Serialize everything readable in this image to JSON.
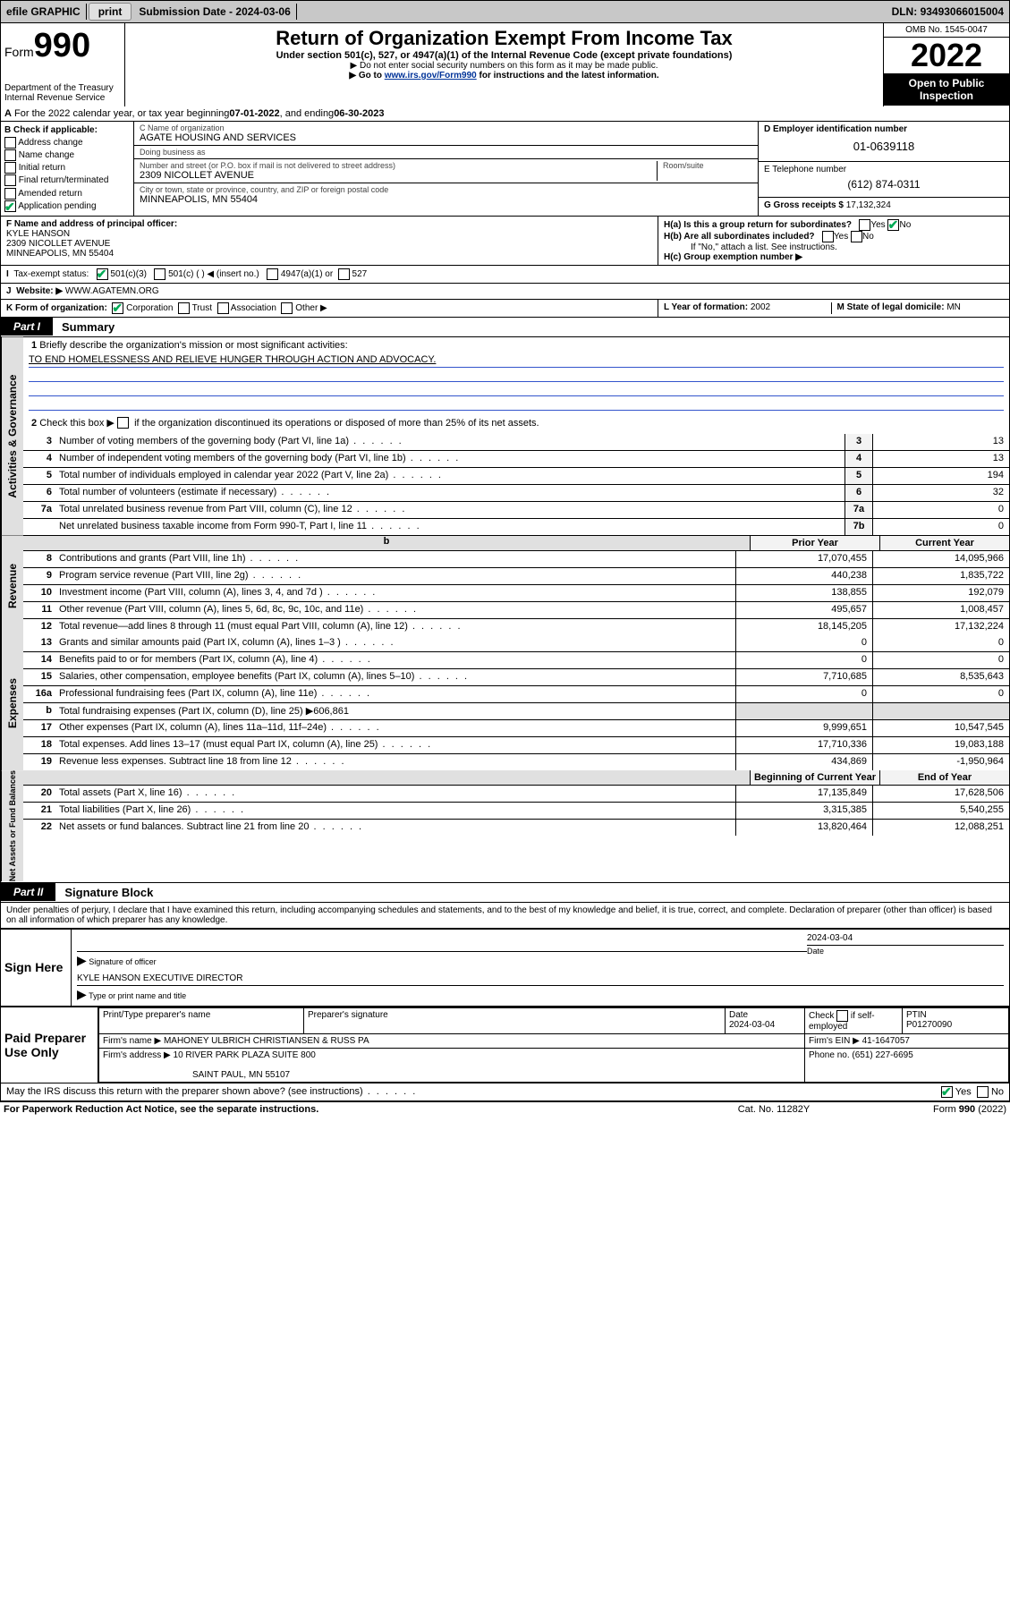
{
  "topbar": {
    "efile": "efile GRAPHIC",
    "print": "print",
    "submission_label": "Submission Date - ",
    "submission_date": "2024-03-06",
    "dln_label": "DLN: ",
    "dln": "93493066015004"
  },
  "header": {
    "form_prefix": "Form",
    "form_number": "990",
    "dept": "Department of the Treasury\nInternal Revenue Service",
    "title": "Return of Organization Exempt From Income Tax",
    "sub1": "Under section 501(c), 527, or 4947(a)(1) of the Internal Revenue Code (except private foundations)",
    "sub2": "▶ Do not enter social security numbers on this form as it may be made public.",
    "sub3_pre": "▶ Go to ",
    "sub3_link": "www.irs.gov/Form990",
    "sub3_post": " for instructions and the latest information.",
    "omb": "OMB No. 1545-0047",
    "year": "2022",
    "open": "Open to Public Inspection"
  },
  "line_a": {
    "text_pre": "For the 2022 calendar year, or tax year beginning ",
    "begin": "07-01-2022",
    "text_mid": " , and ending ",
    "end": "06-30-2023"
  },
  "section_b": {
    "heading": "B Check if applicable:",
    "items": [
      "Address change",
      "Name change",
      "Initial return",
      "Final return/terminated",
      "Amended return",
      "Application pending"
    ],
    "app_pending_checked": true
  },
  "section_c": {
    "name_label": "C Name of organization",
    "name": "AGATE HOUSING AND SERVICES",
    "dba_label": "Doing business as",
    "dba": "",
    "street_label": "Number and street (or P.O. box if mail is not delivered to street address)",
    "room_label": "Room/suite",
    "street": "2309 NICOLLET AVENUE",
    "city_label": "City or town, state or province, country, and ZIP or foreign postal code",
    "city": "MINNEAPOLIS, MN  55404"
  },
  "section_d": {
    "label": "D Employer identification number",
    "value": "01-0639118"
  },
  "section_e": {
    "label": "E Telephone number",
    "value": "(612) 874-0311"
  },
  "section_g": {
    "label": "G Gross receipts $ ",
    "value": "17,132,324"
  },
  "section_f": {
    "label": "F Name and address of principal officer:",
    "name": "KYLE HANSON",
    "street": "2309 NICOLLET AVENUE",
    "city": "MINNEAPOLIS, MN  55404"
  },
  "section_h": {
    "a_label": "H(a)  Is this a group return for subordinates?",
    "a_yes": "Yes",
    "a_no": "No",
    "b_label": "H(b)  Are all subordinates included?",
    "b_note": "If \"No,\" attach a list. See instructions.",
    "c_label": "H(c)  Group exemption number ▶"
  },
  "line_i": {
    "label": "Tax-exempt status:",
    "opt1": "501(c)(3)",
    "opt2": "501(c) (   ) ◀ (insert no.)",
    "opt3": "4947(a)(1) or",
    "opt4": "527"
  },
  "line_j": {
    "label": "Website: ▶",
    "value": "WWW.AGATEMN.ORG"
  },
  "line_k": {
    "label": "K Form of organization:",
    "opts": [
      "Corporation",
      "Trust",
      "Association",
      "Other ▶"
    ]
  },
  "line_l": {
    "label": "L Year of formation: ",
    "value": "2002"
  },
  "line_m": {
    "label": "M State of legal domicile: ",
    "value": "MN"
  },
  "part1": {
    "tab": "Part I",
    "title": "Summary"
  },
  "summary": {
    "q1_label": "Briefly describe the organization's mission or most significant activities:",
    "q1_text": "TO END HOMELESSNESS AND RELIEVE HUNGER THROUGH ACTION AND ADVOCACY.",
    "q2_label": "Check this box ▶",
    "q2_text": "if the organization discontinued its operations or disposed of more than 25% of its net assets.",
    "rows_gov": [
      {
        "n": "3",
        "d": "Number of voting members of the governing body (Part VI, line 1a)",
        "box": "3",
        "v": "13"
      },
      {
        "n": "4",
        "d": "Number of independent voting members of the governing body (Part VI, line 1b)",
        "box": "4",
        "v": "13"
      },
      {
        "n": "5",
        "d": "Total number of individuals employed in calendar year 2022 (Part V, line 2a)",
        "box": "5",
        "v": "194"
      },
      {
        "n": "6",
        "d": "Total number of volunteers (estimate if necessary)",
        "box": "6",
        "v": "32"
      },
      {
        "n": "7a",
        "d": "Total unrelated business revenue from Part VIII, column (C), line 12",
        "box": "7a",
        "v": "0"
      },
      {
        "n": "",
        "d": "Net unrelated business taxable income from Form 990-T, Part I, line 11",
        "box": "7b",
        "v": "0"
      }
    ],
    "col_prior": "Prior Year",
    "col_current": "Current Year",
    "rows_rev": [
      {
        "n": "8",
        "d": "Contributions and grants (Part VIII, line 1h)",
        "p": "17,070,455",
        "c": "14,095,966"
      },
      {
        "n": "9",
        "d": "Program service revenue (Part VIII, line 2g)",
        "p": "440,238",
        "c": "1,835,722"
      },
      {
        "n": "10",
        "d": "Investment income (Part VIII, column (A), lines 3, 4, and 7d )",
        "p": "138,855",
        "c": "192,079"
      },
      {
        "n": "11",
        "d": "Other revenue (Part VIII, column (A), lines 5, 6d, 8c, 9c, 10c, and 11e)",
        "p": "495,657",
        "c": "1,008,457"
      },
      {
        "n": "12",
        "d": "Total revenue—add lines 8 through 11 (must equal Part VIII, column (A), line 12)",
        "p": "18,145,205",
        "c": "17,132,224"
      }
    ],
    "rows_exp": [
      {
        "n": "13",
        "d": "Grants and similar amounts paid (Part IX, column (A), lines 1–3 )",
        "p": "0",
        "c": "0"
      },
      {
        "n": "14",
        "d": "Benefits paid to or for members (Part IX, column (A), line 4)",
        "p": "0",
        "c": "0"
      },
      {
        "n": "15",
        "d": "Salaries, other compensation, employee benefits (Part IX, column (A), lines 5–10)",
        "p": "7,710,685",
        "c": "8,535,643"
      },
      {
        "n": "16a",
        "d": "Professional fundraising fees (Part IX, column (A), line 11e)",
        "p": "0",
        "c": "0"
      }
    ],
    "row_16b_label": "Total fundraising expenses (Part IX, column (D), line 25) ▶",
    "row_16b_val": "606,861",
    "rows_exp2": [
      {
        "n": "17",
        "d": "Other expenses (Part IX, column (A), lines 11a–11d, 11f–24e)",
        "p": "9,999,651",
        "c": "10,547,545"
      },
      {
        "n": "18",
        "d": "Total expenses. Add lines 13–17 (must equal Part IX, column (A), line 25)",
        "p": "17,710,336",
        "c": "19,083,188"
      },
      {
        "n": "19",
        "d": "Revenue less expenses. Subtract line 18 from line 12",
        "p": "434,869",
        "c": "-1,950,964"
      }
    ],
    "col_begin": "Beginning of Current Year",
    "col_end": "End of Year",
    "rows_net": [
      {
        "n": "20",
        "d": "Total assets (Part X, line 16)",
        "p": "17,135,849",
        "c": "17,628,506"
      },
      {
        "n": "21",
        "d": "Total liabilities (Part X, line 26)",
        "p": "3,315,385",
        "c": "5,540,255"
      },
      {
        "n": "22",
        "d": "Net assets or fund balances. Subtract line 21 from line 20",
        "p": "13,820,464",
        "c": "12,088,251"
      }
    ],
    "side_gov": "Activities & Governance",
    "side_rev": "Revenue",
    "side_exp": "Expenses",
    "side_net": "Net Assets or Fund Balances"
  },
  "part2": {
    "tab": "Part II",
    "title": "Signature Block"
  },
  "penalties": "Under penalties of perjury, I declare that I have examined this return, including accompanying schedules and statements, and to the best of my knowledge and belief, it is true, correct, and complete. Declaration of preparer (other than officer) is based on all information of which preparer has any knowledge.",
  "sign": {
    "label": "Sign Here",
    "sig_officer": "Signature of officer",
    "date": "Date",
    "date_val": "2024-03-04",
    "name": "KYLE HANSON  EXECUTIVE DIRECTOR",
    "name_label": "Type or print name and title"
  },
  "preparer": {
    "label": "Paid Preparer Use Only",
    "h_name": "Print/Type preparer's name",
    "h_sig": "Preparer's signature",
    "h_date": "Date",
    "date": "2024-03-04",
    "h_check": "Check",
    "h_check2": "if self-employed",
    "h_ptin": "PTIN",
    "ptin": "P01270090",
    "firm_name_label": "Firm's name    ▶",
    "firm_name": "MAHONEY ULBRICH CHRISTIANSEN & RUSS PA",
    "firm_ein_label": "Firm's EIN ▶",
    "firm_ein": "41-1647057",
    "firm_addr_label": "Firm's address ▶",
    "firm_addr1": "10 RIVER PARK PLAZA SUITE 800",
    "firm_addr2": "SAINT PAUL, MN  55107",
    "phone_label": "Phone no. ",
    "phone": "(651) 227-6695"
  },
  "discuss": {
    "text": "May the IRS discuss this return with the preparer shown above? (see instructions)",
    "yes": "Yes",
    "no": "No"
  },
  "footer": {
    "left": "For Paperwork Reduction Act Notice, see the separate instructions.",
    "mid": "Cat. No. 11282Y",
    "right_pre": "Form ",
    "right_form": "990",
    "right_post": " (2022)"
  }
}
